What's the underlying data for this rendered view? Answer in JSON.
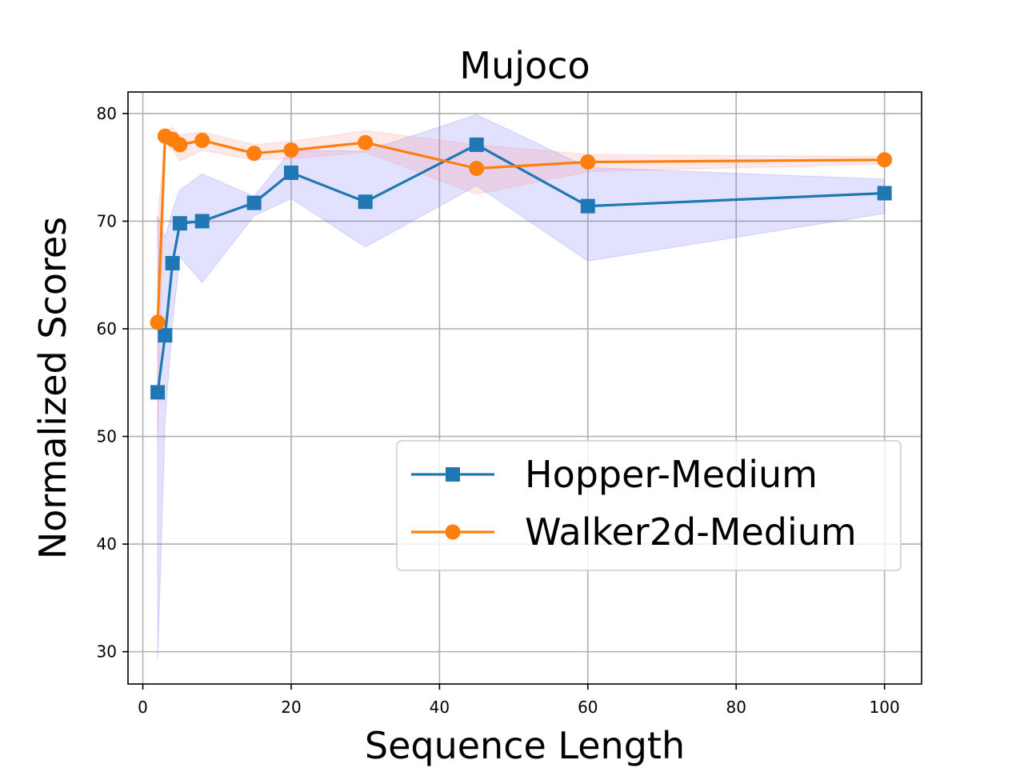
{
  "chart_data": {
    "type": "line",
    "title": "Mujoco",
    "xlabel": "Sequence Length",
    "ylabel": "Normalized Scores",
    "xlim": [
      -2,
      105
    ],
    "ylim": [
      27,
      82
    ],
    "xticks": [
      0,
      20,
      40,
      60,
      80,
      100
    ],
    "yticks": [
      30,
      40,
      50,
      60,
      70,
      80
    ],
    "grid": true,
    "legend_position": "lower-right",
    "series": [
      {
        "name": "Hopper-Medium",
        "color": "#1f77b4",
        "marker": "square",
        "band_color": "#6f6fff",
        "x": [
          2,
          3,
          4,
          5,
          8,
          15,
          20,
          30,
          45,
          60,
          100
        ],
        "y": [
          54.1,
          59.4,
          66.1,
          69.8,
          70.0,
          71.7,
          74.5,
          71.8,
          77.1,
          71.4,
          72.6
        ],
        "upper": [
          70.5,
          68.5,
          71.0,
          72.9,
          74.4,
          72.3,
          76.6,
          76.5,
          79.9,
          75.0,
          73.9
        ],
        "lower": [
          29.2,
          51.5,
          60.6,
          66.7,
          64.3,
          70.5,
          72.1,
          67.6,
          73.3,
          66.3,
          70.7
        ]
      },
      {
        "name": "Walker2d-Medium",
        "color": "#ff7f0e",
        "marker": "circle",
        "band_color": "#ff8a8a",
        "x": [
          2,
          3,
          4,
          5,
          8,
          15,
          20,
          30,
          45,
          60,
          100
        ],
        "y": [
          60.6,
          77.9,
          77.6,
          77.1,
          77.5,
          76.3,
          76.6,
          77.3,
          74.9,
          75.5,
          75.7
        ],
        "upper": [
          70.0,
          78.4,
          78.7,
          78.0,
          78.3,
          77.1,
          77.4,
          78.4,
          77.1,
          76.2,
          76.0
        ],
        "lower": [
          49.5,
          77.3,
          76.7,
          75.6,
          76.6,
          75.7,
          75.8,
          76.4,
          72.5,
          74.6,
          75.3
        ]
      }
    ]
  }
}
